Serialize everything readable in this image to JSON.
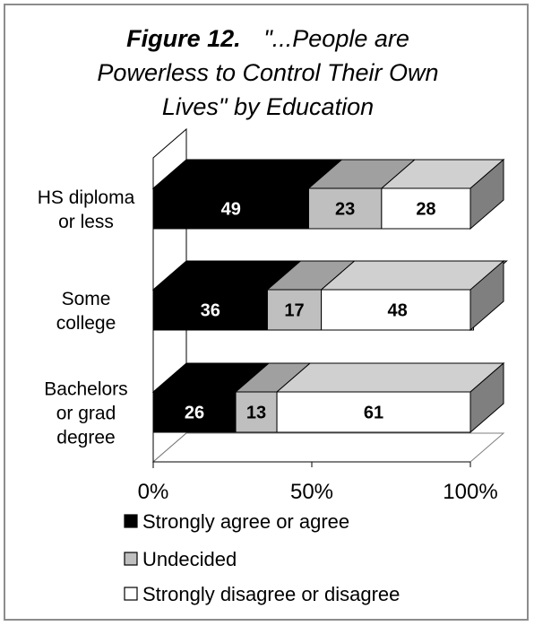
{
  "chart_data": {
    "type": "bar",
    "orientation": "horizontal",
    "stacked": true,
    "percent_scale": true,
    "three_d": true,
    "title": {
      "figure_label": "Figure 12.",
      "lines": [
        "\"...People are",
        "Powerless to Control Their Own",
        "Lives\" by Education"
      ]
    },
    "categories": [
      [
        "HS diploma",
        "or less"
      ],
      [
        "Some",
        "college"
      ],
      [
        "Bachelors",
        "or grad",
        "degree"
      ]
    ],
    "series": [
      {
        "name": "Strongly agree or agree",
        "values": [
          49,
          36,
          26
        ],
        "color": "#000000",
        "label_color": "#ffffff"
      },
      {
        "name": "Undecided",
        "values": [
          23,
          17,
          13
        ],
        "color": "#bfbfbf",
        "label_color": "#000000"
      },
      {
        "name": "Strongly disagree or disagree",
        "values": [
          28,
          48,
          61
        ],
        "color": "#ffffff",
        "label_color": "#000000"
      }
    ],
    "x_ticks": [
      "0%",
      "50%",
      "100%"
    ],
    "xlim": [
      0,
      100
    ],
    "grid": false,
    "legend": "bottom"
  }
}
